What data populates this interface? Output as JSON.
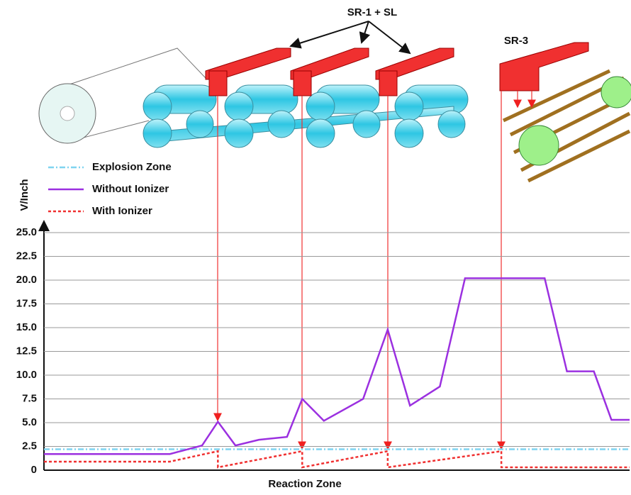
{
  "chart_data": {
    "type": "line",
    "annotations": [
      "SR-1 + SL",
      "SR-3"
    ],
    "xlabel": "Reaction Zone",
    "ylabel": "V/Inch",
    "xlim": [
      0,
      100
    ],
    "ylim": [
      0,
      25
    ],
    "yticks": [
      0,
      2.5,
      {
        "value": 5,
        "label": "5.0"
      },
      7.5,
      {
        "value": 10,
        "label": "10.0"
      },
      12.5,
      {
        "value": 15,
        "label": "15.0"
      },
      17.5,
      {
        "value": 20,
        "label": "20.0"
      },
      22.5,
      {
        "value": 25,
        "label": "25.0"
      }
    ],
    "grid": true,
    "series": [
      {
        "name": "Explosion Zone",
        "color": "#7fd4f0",
        "style": "dashdot",
        "x": [
          0,
          100
        ],
        "values": [
          2.2,
          2.2
        ]
      },
      {
        "name": "Without Ionizer",
        "color": "#9b30e0",
        "style": "solid",
        "x": [
          0,
          21.5,
          27,
          29.7,
          32.7,
          36.7,
          41.5,
          44.1,
          47.8,
          54.5,
          58.7,
          62.5,
          67.6,
          71.9,
          85.5,
          89.3,
          93.9,
          96.9,
          100
        ],
        "values": [
          1.7,
          1.7,
          2.6,
          5.1,
          2.6,
          3.2,
          3.5,
          7.5,
          5.2,
          7.5,
          14.8,
          6.8,
          8.8,
          20.2,
          20.2,
          10.4,
          10.4,
          5.3,
          5.3
        ]
      },
      {
        "name": "With Ionizer",
        "color": "#f03030",
        "style": "dotted",
        "x": [
          0,
          21.5,
          29.7,
          29.7,
          44.1,
          44.1,
          58.7,
          58.7,
          78.1,
          78.1,
          100
        ],
        "values": [
          0.9,
          0.9,
          2.0,
          0.3,
          2.0,
          0.3,
          2.0,
          0.3,
          2.0,
          0.3,
          0.3
        ]
      }
    ]
  }
}
